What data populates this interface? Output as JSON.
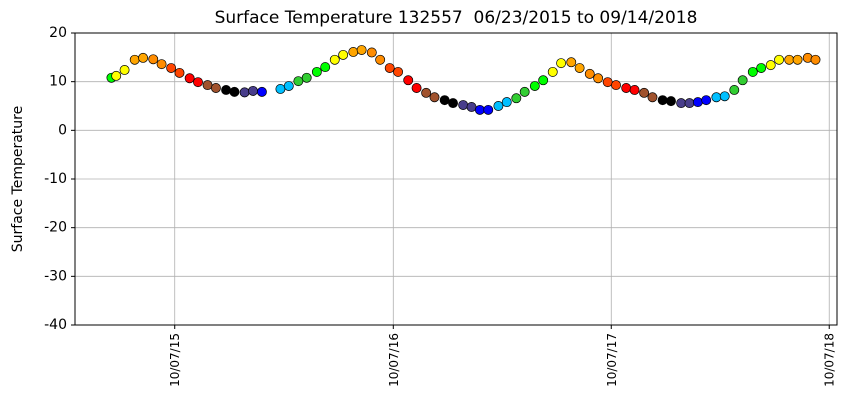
{
  "chart_data": {
    "type": "scatter",
    "title": "Surface Temperature 132557  06/23/2015 to 09/14/2018",
    "y_label": "Surface Temperature",
    "month_colors": [
      "#000000",
      "#483d8b",
      "#0000ff",
      "#00bfff",
      "#32cd32",
      "#00ff00",
      "#ffff00",
      "#ffa500",
      "#ff8c00",
      "#ff4500",
      "#ff0000",
      "#a0522d"
    ],
    "x": [
      "2015-06-23",
      "2015-07-01",
      "2015-07-15",
      "2015-08-01",
      "2015-08-15",
      "2015-09-01",
      "2015-09-15",
      "2015-10-01",
      "2015-10-15",
      "2015-11-01",
      "2015-11-15",
      "2015-12-01",
      "2015-12-15",
      "2016-01-01",
      "2016-01-15",
      "2016-02-01",
      "2016-02-15",
      "2016-03-01",
      "2016-03-15",
      "2016-04-01",
      "2016-04-15",
      "2016-05-01",
      "2016-05-15",
      "2016-06-01",
      "2016-06-15",
      "2016-07-01",
      "2016-07-15",
      "2016-08-01",
      "2016-08-15",
      "2016-09-01",
      "2016-09-15",
      "2016-10-01",
      "2016-10-15",
      "2016-11-01",
      "2016-11-15",
      "2016-12-01",
      "2016-12-15",
      "2017-01-01",
      "2017-01-15",
      "2017-02-01",
      "2017-02-15",
      "2017-03-01",
      "2017-03-15",
      "2017-04-01",
      "2017-04-15",
      "2017-05-01",
      "2017-05-15",
      "2017-06-01",
      "2017-06-15",
      "2017-07-01",
      "2017-07-15",
      "2017-08-01",
      "2017-08-15",
      "2017-09-01",
      "2017-09-15",
      "2017-10-01",
      "2017-10-15",
      "2017-11-01",
      "2017-11-15",
      "2017-12-01",
      "2017-12-15",
      "2018-01-01",
      "2018-01-15",
      "2018-02-01",
      "2018-02-15",
      "2018-03-01",
      "2018-03-15",
      "2018-04-01",
      "2018-04-15",
      "2018-05-01",
      "2018-05-15",
      "2018-06-01",
      "2018-06-15",
      "2018-07-01",
      "2018-07-15",
      "2018-08-01",
      "2018-08-15",
      "2018-09-01",
      "2018-09-14"
    ],
    "values": [
      10.8,
      11.2,
      12.4,
      14.5,
      14.9,
      14.6,
      13.6,
      12.8,
      11.8,
      10.7,
      9.9,
      9.3,
      8.7,
      8.3,
      7.9,
      7.8,
      8.1,
      7.9,
      null,
      8.5,
      9.1,
      10.1,
      10.8,
      12,
      13,
      14.5,
      15.5,
      16.1,
      16.5,
      16,
      14.5,
      12.8,
      12,
      10.3,
      8.7,
      7.7,
      6.8,
      6.2,
      5.6,
      5.2,
      4.8,
      4.2,
      4.2,
      5,
      5.8,
      6.6,
      7.9,
      9.1,
      10.3,
      12,
      13.8,
      14,
      12.8,
      11.6,
      10.7,
      9.9,
      9.3,
      8.7,
      8.3,
      7.7,
      6.8,
      6.2,
      6,
      5.6,
      5.6,
      5.8,
      6.2,
      6.8,
      7,
      8.3,
      10.3,
      12,
      12.8,
      13.4,
      14.5,
      14.5,
      14.5,
      14.9,
      14.5
    ],
    "xlim": [
      "2015-04-23",
      "2018-10-20"
    ],
    "xticks": [
      {
        "value": "2015-10-07",
        "label": "10/07/15"
      },
      {
        "value": "2016-10-07",
        "label": "10/07/16"
      },
      {
        "value": "2017-10-07",
        "label": "10/07/17"
      },
      {
        "value": "2018-10-07",
        "label": "10/07/18"
      }
    ],
    "ylim": [
      -40,
      20
    ],
    "yticks": [
      -40,
      -30,
      -20,
      -10,
      0,
      10,
      20
    ],
    "grid": true
  }
}
